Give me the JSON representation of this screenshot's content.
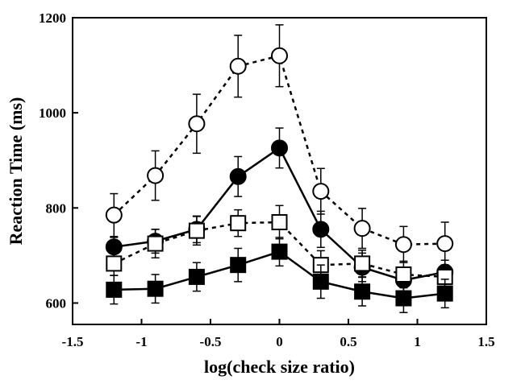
{
  "chart_data": {
    "type": "line",
    "title": "",
    "xlabel": "log(check size ratio)",
    "ylabel": "Reaction Time (ms)",
    "xlim": [
      -1.5,
      1.5
    ],
    "ylim": [
      555,
      1200
    ],
    "x_ticks": [
      -1.5,
      -1,
      -0.5,
      0,
      0.5,
      1,
      1.5
    ],
    "x_tick_labels": [
      "-1.5",
      "-1",
      "-0.5",
      "0",
      "0.5",
      "1",
      "1.5"
    ],
    "y_ticks": [
      600,
      800,
      1000,
      1200
    ],
    "y_tick_labels": [
      "600",
      "800",
      "1000",
      "1200"
    ],
    "grid": false,
    "legend": "none",
    "x": [
      -1.2,
      -0.9,
      -0.6,
      -0.3,
      0,
      0.3,
      0.6,
      0.9,
      1.2
    ],
    "series": [
      {
        "marker": "open-circle",
        "line": "dashed",
        "values": [
          785,
          868,
          977,
          1098,
          1120,
          835,
          757,
          723,
          725
        ],
        "error": [
          45,
          52,
          62,
          65,
          65,
          48,
          42,
          38,
          45
        ]
      },
      {
        "marker": "filled-circle",
        "line": "solid",
        "values": [
          718,
          730,
          755,
          866,
          926,
          755,
          675,
          648,
          665
        ],
        "error": [
          20,
          25,
          28,
          42,
          42,
          38,
          30,
          25,
          25
        ]
      },
      {
        "marker": "open-square",
        "line": "dashed",
        "values": [
          683,
          725,
          752,
          768,
          770,
          680,
          683,
          660,
          655
        ],
        "error": [
          25,
          30,
          30,
          28,
          35,
          30,
          28,
          28,
          25
        ]
      },
      {
        "marker": "filled-square",
        "line": "solid",
        "values": [
          628,
          630,
          655,
          680,
          708,
          645,
          624,
          610,
          620
        ],
        "error": [
          30,
          30,
          30,
          35,
          30,
          35,
          30,
          30,
          30
        ]
      }
    ]
  }
}
